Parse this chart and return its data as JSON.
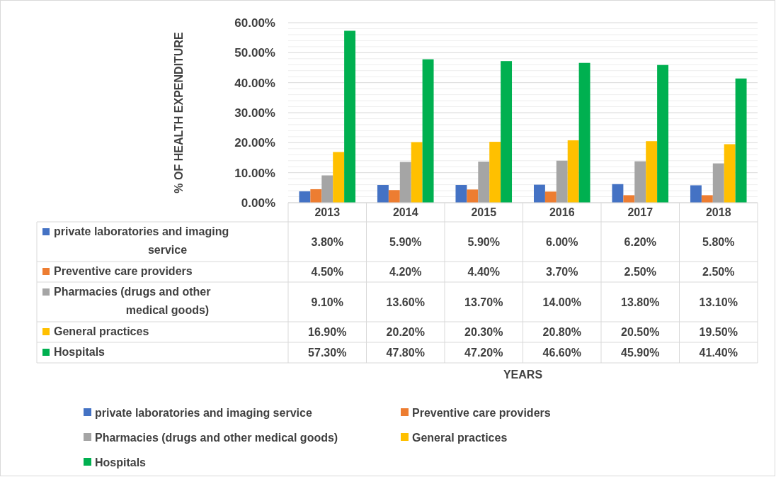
{
  "chart_data": {
    "type": "bar",
    "annotations": [
      "YEARS"
    ],
    "ylabel": "% OF HEALTH EXPENDITURE",
    "categories": [
      "2013",
      "2014",
      "2015",
      "2016",
      "2017",
      "2018"
    ],
    "series": [
      {
        "name": "private laboratories and imaging service",
        "color": "#4472c4",
        "values": [
          3.8,
          5.9,
          5.9,
          6.0,
          6.2,
          5.8
        ],
        "value_labels": [
          "3.80%",
          "5.90%",
          "5.90%",
          "6.00%",
          "6.20%",
          "5.80%"
        ]
      },
      {
        "name": "Preventive care providers",
        "color": "#ed7d31",
        "values": [
          4.5,
          4.2,
          4.4,
          3.7,
          2.5,
          2.5
        ],
        "value_labels": [
          "4.50%",
          "4.20%",
          "4.40%",
          "3.70%",
          "2.50%",
          "2.50%"
        ]
      },
      {
        "name": "Pharmacies (drugs and other medical goods)",
        "color": "#a5a5a5",
        "values": [
          9.1,
          13.6,
          13.7,
          14.0,
          13.8,
          13.1
        ],
        "value_labels": [
          "9.10%",
          "13.60%",
          "13.70%",
          "14.00%",
          "13.80%",
          "13.10%"
        ]
      },
      {
        "name": "General practices",
        "color": "#ffc000",
        "values": [
          16.9,
          20.2,
          20.3,
          20.8,
          20.5,
          19.5
        ],
        "value_labels": [
          "16.90%",
          "20.20%",
          "20.30%",
          "20.80%",
          "20.50%",
          "19.50%"
        ]
      },
      {
        "name": "Hospitals",
        "color": "#00b050",
        "values": [
          57.3,
          47.8,
          47.2,
          46.6,
          45.9,
          41.4
        ],
        "value_labels": [
          "57.30%",
          "47.80%",
          "47.20%",
          "46.60%",
          "45.90%",
          "41.40%"
        ]
      }
    ],
    "ylim": [
      0,
      60
    ],
    "yticks": [
      {
        "value": 0,
        "label": "0.00%"
      },
      {
        "value": 2,
        "label": null
      },
      {
        "value": 4,
        "label": null
      },
      {
        "value": 6,
        "label": null
      },
      {
        "value": 8,
        "label": null
      },
      {
        "value": 10,
        "label": "10.00%"
      },
      {
        "value": 12,
        "label": null
      },
      {
        "value": 14,
        "label": null
      },
      {
        "value": 16,
        "label": null
      },
      {
        "value": 18,
        "label": null
      },
      {
        "value": 20,
        "label": "20.00%"
      },
      {
        "value": 22,
        "label": null
      },
      {
        "value": 24,
        "label": null
      },
      {
        "value": 26,
        "label": null
      },
      {
        "value": 28,
        "label": null
      },
      {
        "value": 30,
        "label": "30.00%"
      },
      {
        "value": 32,
        "label": null
      },
      {
        "value": 34,
        "label": null
      },
      {
        "value": 36,
        "label": null
      },
      {
        "value": 38,
        "label": null
      },
      {
        "value": 40,
        "label": "40.00%"
      },
      {
        "value": 42,
        "label": null
      },
      {
        "value": 44,
        "label": null
      },
      {
        "value": 46,
        "label": null
      },
      {
        "value": 48,
        "label": null
      },
      {
        "value": 50,
        "label": "50.00%"
      },
      {
        "value": 52,
        "label": null
      },
      {
        "value": 54,
        "label": null
      },
      {
        "value": 56,
        "label": null
      },
      {
        "value": 58,
        "label": null
      },
      {
        "value": 60,
        "label": "60.00%"
      }
    ],
    "grid": "y",
    "legend": "bottom"
  }
}
